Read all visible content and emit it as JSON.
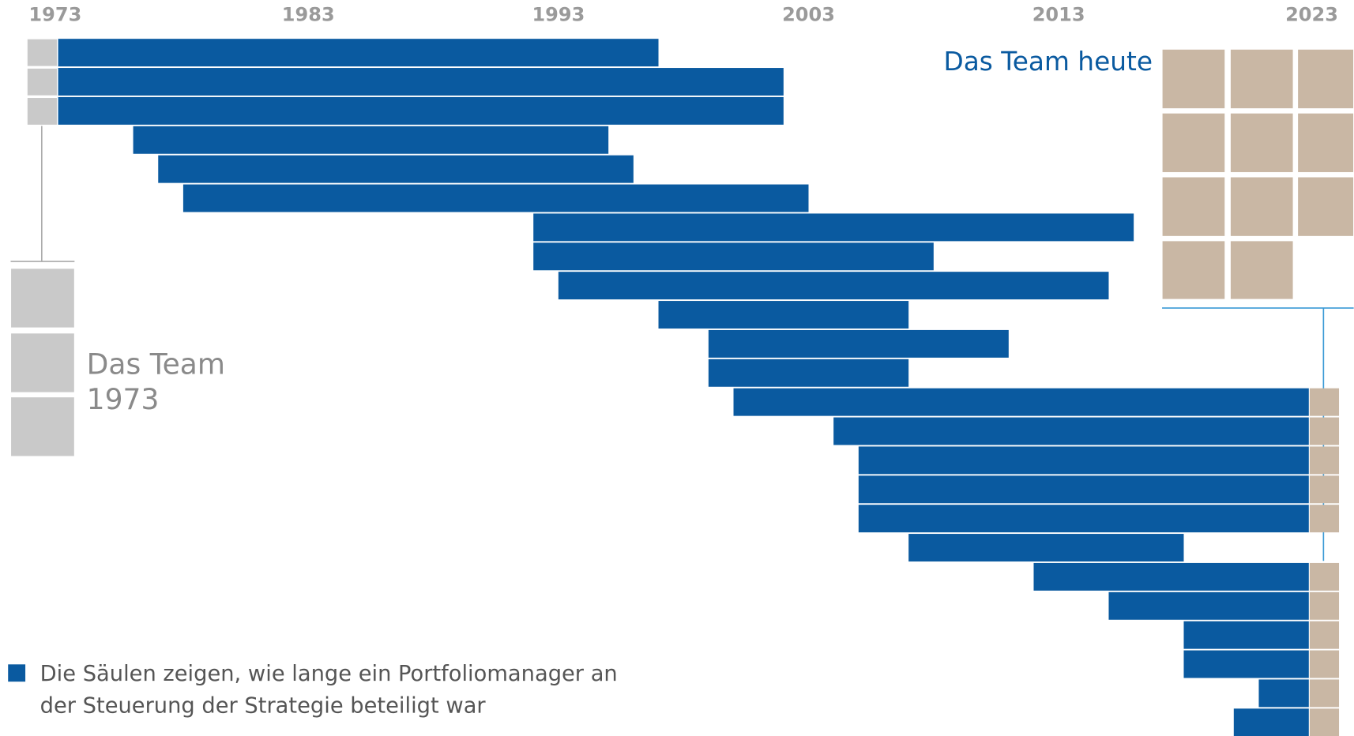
{
  "chart_data": {
    "type": "gantt",
    "xlim": [
      1973,
      2023
    ],
    "xticks": [
      1973,
      1983,
      1993,
      2003,
      2013,
      2023
    ],
    "starts": [
      1973,
      1973,
      1973,
      1976,
      1977,
      1978,
      1992,
      1992,
      1993,
      1997,
      1999,
      1999,
      2000,
      2004,
      2005,
      2005,
      2005,
      2007,
      2012,
      2015,
      2018,
      2018,
      2021,
      2020
    ],
    "ends": [
      1997,
      2002,
      2002,
      1995,
      1996,
      2003,
      2016,
      2008,
      2015,
      2007,
      2011,
      2007,
      2023,
      2023,
      2023,
      2023,
      2023,
      2018,
      2023,
      2023,
      2023,
      2023,
      2023,
      2023
    ],
    "color": "#0a5aa0",
    "annotations": {
      "team_today": "Das Team heute",
      "team_1973": [
        "Das Team",
        "1973"
      ]
    },
    "legend": [
      "Die Säulen zeigen, wie lange ein Portfoliomanager an",
      "der Steuerung der Strategie beteiligt war"
    ]
  }
}
